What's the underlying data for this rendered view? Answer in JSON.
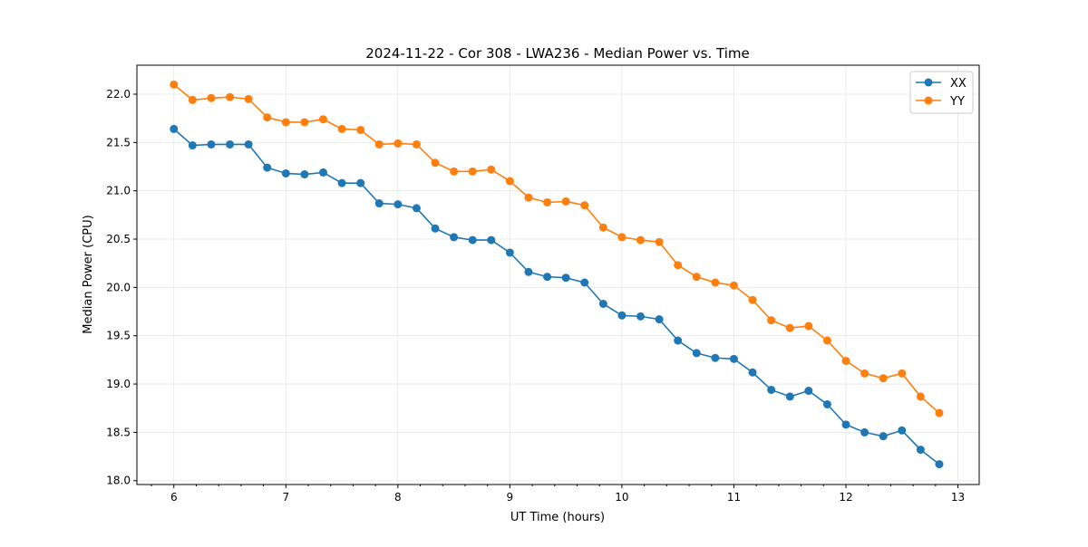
{
  "chart_data": {
    "type": "line",
    "title": "2024-11-22 - Cor 308 - LWA236 - Median Power vs. Time",
    "xlabel": "UT Time (hours)",
    "ylabel": "Median Power (CPU)",
    "xlim": [
      5.67,
      13.19
    ],
    "ylim": [
      17.96,
      22.3
    ],
    "xticks": [
      6,
      7,
      8,
      9,
      10,
      11,
      12,
      13
    ],
    "xtick_labels": [
      "6",
      "7",
      "8",
      "9",
      "10",
      "11",
      "12",
      "13"
    ],
    "yticks": [
      18.0,
      18.5,
      19.0,
      19.5,
      20.0,
      20.5,
      21.0,
      21.5,
      22.0
    ],
    "ytick_labels": [
      "18.0",
      "18.5",
      "19.0",
      "19.5",
      "20.0",
      "20.5",
      "21.0",
      "21.5",
      "22.0"
    ],
    "grid": true,
    "legend_position": "top-right",
    "x_start": 6.0,
    "x_step_hours": 0.16667,
    "series": [
      {
        "name": "XX",
        "color": "#1f77b4",
        "values": [
          21.64,
          21.47,
          21.48,
          21.48,
          21.48,
          21.24,
          21.18,
          21.17,
          21.19,
          21.08,
          21.08,
          20.87,
          20.86,
          20.82,
          20.61,
          20.52,
          20.49,
          20.49,
          20.36,
          20.16,
          20.11,
          20.1,
          20.05,
          19.83,
          19.71,
          19.7,
          19.67,
          19.45,
          19.32,
          19.27,
          19.26,
          19.12,
          18.94,
          18.87,
          18.93,
          18.79,
          18.58,
          18.5,
          18.46,
          18.52,
          18.32,
          18.17
        ]
      },
      {
        "name": "YY",
        "color": "#ff7f0e",
        "values": [
          22.1,
          21.94,
          21.96,
          21.97,
          21.95,
          21.76,
          21.71,
          21.71,
          21.74,
          21.64,
          21.63,
          21.48,
          21.49,
          21.48,
          21.29,
          21.2,
          21.2,
          21.22,
          21.1,
          20.93,
          20.88,
          20.89,
          20.85,
          20.62,
          20.52,
          20.49,
          20.47,
          20.23,
          20.11,
          20.05,
          20.02,
          19.87,
          19.66,
          19.58,
          19.6,
          19.45,
          19.24,
          19.11,
          19.06,
          19.11,
          18.87,
          18.7
        ]
      }
    ]
  }
}
